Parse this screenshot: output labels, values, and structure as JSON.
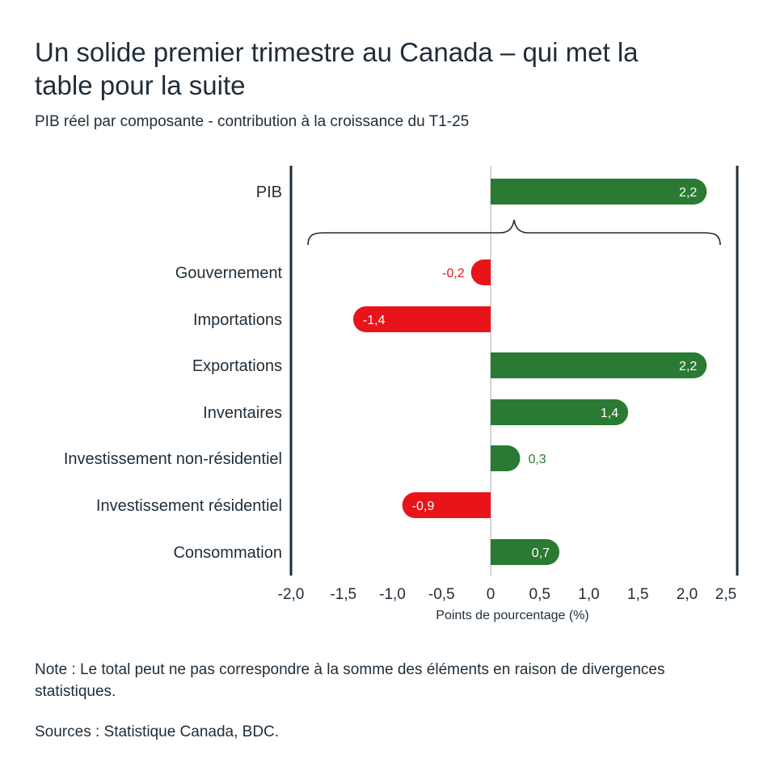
{
  "title": "Un solide premier trimestre au Canada – qui met la table pour la suite",
  "subtitle": "PIB réel par composante - contribution à la croissance du T1-25",
  "note": "Note : Le total peut ne pas correspondre à la somme des éléments en raison de divergences statistiques.",
  "source": "Sources : Statistique Canada, BDC.",
  "colors": {
    "positive": "#2b7a34",
    "negative": "#e8141a",
    "axis": "#1f2d38",
    "zero_line": "#c8c8c8"
  },
  "chart_data": {
    "type": "bar",
    "orientation": "horizontal",
    "title": "Un solide premier trimestre au Canada – qui met la table pour la suite",
    "subtitle": "PIB réel par composante - contribution à la croissance du T1-25",
    "xlabel": "Points de pourcentage (%)",
    "ylabel": "",
    "xlim": [
      -2.0,
      2.5
    ],
    "categories": [
      "PIB",
      "Gouvernement",
      "Importations",
      "Exportations",
      "Inventaires",
      "Investissement non-résidentiel",
      "Investissement résidentiel",
      "Consommation"
    ],
    "values": [
      2.2,
      -0.2,
      -1.4,
      2.2,
      1.4,
      0.3,
      -0.9,
      0.7
    ],
    "value_labels": [
      "2,2",
      "-0,2",
      "-1,4",
      "2,2",
      "1,4",
      "0,3",
      "-0,9",
      "0,7"
    ],
    "ticks": [
      -2.0,
      -1.5,
      -1.0,
      -0.5,
      0,
      0.5,
      1.0,
      1.5,
      2.0,
      2.5
    ],
    "tick_labels": [
      "-2,0",
      "-1,5",
      "-1,0",
      "-0,5",
      "0",
      "0,5",
      "1,0",
      "1,5",
      "2,0",
      "2,5"
    ],
    "annotations": [
      "accolade regroupant les composantes sous le PIB"
    ]
  }
}
